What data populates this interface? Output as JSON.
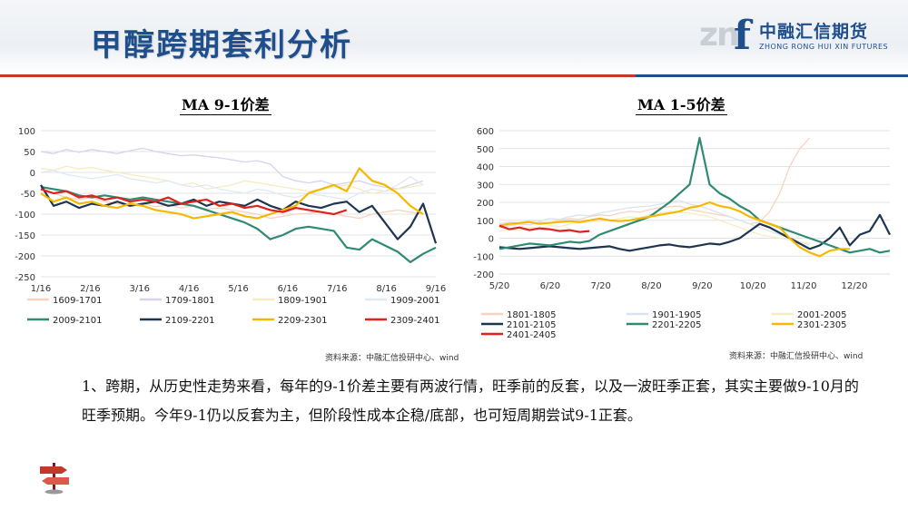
{
  "header": {
    "title": "甲醇跨期套利分析",
    "logo_mark": "zn",
    "logo_letter": "f",
    "logo_cn": "中融汇信期货",
    "logo_en": "ZHONG RONG HUI XIN FUTURES"
  },
  "colors": {
    "title": "#1f4e8c",
    "accent_red": "#c0392b",
    "accent_blue": "#1f4e8c"
  },
  "body": {
    "paragraph": "1、跨期，从历史性走势来看，每年的9-1价差主要有两波行情，旺季前的反套，以及一波旺季正套，其实主要做9-10月的旺季预期。今年9-1仍以反套为主，但阶段性成本企稳/底部，也可短周期尝试9-1正套。"
  },
  "chart_data": [
    {
      "type": "line",
      "title": "MA 9-1价差",
      "source": "资料来源：中融汇信投研中心、wind",
      "x_ticks": [
        "1/16",
        "2/16",
        "3/16",
        "4/16",
        "5/16",
        "6/16",
        "7/16",
        "8/16",
        "9/16"
      ],
      "ylim": [
        -250,
        100
      ],
      "y_ticks": [
        100,
        50,
        0,
        -50,
        -100,
        -150,
        -200,
        -250
      ],
      "legend_position": "bottom",
      "series": [
        {
          "name": "1609-1701",
          "color": "#f9d3bf",
          "width": 1.3,
          "y": [
            -40,
            -50,
            -60,
            -65,
            -60,
            -70,
            -75,
            -80,
            -75,
            -82,
            -78,
            -85,
            -80,
            -88,
            -85,
            -90,
            -95,
            -100,
            -110,
            -105,
            -100,
            -98,
            -95,
            -100,
            -105,
            -110,
            -100,
            -95,
            -90,
            -95,
            -100
          ]
        },
        {
          "name": "1709-1801",
          "color": "#d9d2ea",
          "width": 1.3,
          "y": [
            50,
            45,
            55,
            48,
            55,
            50,
            45,
            52,
            58,
            50,
            45,
            40,
            42,
            38,
            35,
            30,
            25,
            28,
            20,
            -10,
            -20,
            -25,
            -20,
            -30,
            -25,
            -20,
            -30,
            -35,
            -40,
            -30,
            -20
          ]
        },
        {
          "name": "1809-1901",
          "color": "#f5ecc0",
          "width": 1.3,
          "y": [
            10,
            5,
            15,
            8,
            12,
            5,
            0,
            -5,
            -10,
            -15,
            -20,
            -30,
            -25,
            -40,
            -35,
            -30,
            -20,
            -25,
            -30,
            -35,
            -40,
            -45,
            -40,
            -35,
            -30,
            -40,
            -50,
            -45,
            -40,
            -35,
            -30
          ]
        },
        {
          "name": "1909-2001",
          "color": "#dfe9f4",
          "width": 1.3,
          "y": [
            0,
            5,
            -5,
            -10,
            -15,
            -10,
            -5,
            -15,
            -20,
            -25,
            -20,
            -30,
            -35,
            -30,
            -40,
            -45,
            -50,
            -40,
            -45,
            -55,
            -60,
            -50,
            -55,
            -60,
            -65,
            -50,
            -40,
            -45,
            -30,
            -10,
            -30
          ]
        },
        {
          "name": "2009-2101",
          "color": "#2f8a74",
          "width": 2.2,
          "y": [
            -35,
            -40,
            -45,
            -55,
            -60,
            -55,
            -60,
            -65,
            -60,
            -65,
            -70,
            -75,
            -80,
            -90,
            -100,
            -110,
            -120,
            -135,
            -160,
            -150,
            -135,
            -130,
            -135,
            -140,
            -180,
            -185,
            -160,
            -175,
            -190,
            -215,
            -195,
            -180
          ]
        },
        {
          "name": "2109-2201",
          "color": "#1e3550",
          "width": 2.2,
          "y": [
            -30,
            -80,
            -70,
            -85,
            -75,
            -80,
            -70,
            -80,
            -75,
            -70,
            -80,
            -75,
            -65,
            -80,
            -70,
            -75,
            -80,
            -65,
            -80,
            -90,
            -70,
            -80,
            -85,
            -75,
            -70,
            -95,
            -80,
            -120,
            -160,
            -130,
            -75,
            -170
          ]
        },
        {
          "name": "2209-2301",
          "color": "#f5b800",
          "width": 2.2,
          "y": [
            -50,
            -70,
            -60,
            -75,
            -70,
            -80,
            -85,
            -75,
            -80,
            -90,
            -95,
            -100,
            -110,
            -105,
            -100,
            -95,
            -105,
            -110,
            -100,
            -90,
            -80,
            -50,
            -40,
            -30,
            -45,
            10,
            -20,
            -30,
            -50,
            -80,
            -100
          ]
        },
        {
          "name": "2309-2401",
          "color": "#e0211c",
          "width": 2.2,
          "y": [
            -40,
            -50,
            -45,
            -60,
            -55,
            -65,
            -60,
            -70,
            -65,
            -70,
            -60,
            -75,
            -70,
            -65,
            -80,
            -75,
            -85,
            -80,
            -90,
            -95,
            -85,
            -90,
            -95,
            -100,
            -90
          ]
        }
      ]
    },
    {
      "type": "line",
      "title": "MA 1-5价差",
      "source": "资料来源：中融汇信投研中心、wind",
      "x_ticks": [
        "5/20",
        "6/20",
        "7/20",
        "8/20",
        "9/20",
        "10/20",
        "11/20",
        "12/20"
      ],
      "ylim": [
        -200,
        600
      ],
      "y_ticks": [
        600,
        500,
        400,
        300,
        200,
        100,
        0,
        -100,
        -200
      ],
      "legend_position": "bottom",
      "series": [
        {
          "name": "1801-1805",
          "color": "#f9d3bf",
          "width": 1.3,
          "y": [
            60,
            70,
            80,
            75,
            90,
            85,
            100,
            110,
            105,
            120,
            130,
            125,
            140,
            150,
            145,
            160,
            170,
            175,
            180,
            160,
            150,
            140,
            130,
            120,
            100,
            80,
            90,
            150,
            250,
            400,
            500,
            560
          ]
        },
        {
          "name": "1901-1905",
          "color": "#d9e4f2",
          "width": 1.3,
          "y": [
            80,
            90,
            85,
            100,
            95,
            110,
            105,
            120,
            130,
            125,
            140,
            150,
            160,
            170,
            175,
            180,
            190,
            200,
            210,
            190,
            180,
            160,
            140,
            120,
            100,
            80,
            60,
            40,
            20,
            0,
            -20,
            -40
          ]
        },
        {
          "name": "2001-2005",
          "color": "#f5ecc0",
          "width": 1.3,
          "y": [
            40,
            50,
            45,
            60,
            55,
            70,
            65,
            80,
            85,
            90,
            95,
            100,
            110,
            120,
            115,
            130,
            140,
            150,
            145,
            140,
            130,
            120,
            100,
            80,
            60,
            40,
            20,
            10,
            0,
            -10,
            -20,
            -30
          ]
        },
        {
          "name": "2101-2105",
          "color": "#1e3550",
          "width": 2.2,
          "y": [
            -50,
            -55,
            -60,
            -55,
            -50,
            -45,
            -50,
            -55,
            -60,
            -55,
            -50,
            -45,
            -60,
            -70,
            -60,
            -50,
            -40,
            -35,
            -45,
            -50,
            -40,
            -30,
            -35,
            -20,
            0,
            40,
            80,
            60,
            30,
            0,
            -30,
            -60,
            -40,
            0,
            60,
            -40,
            20,
            40,
            130,
            20
          ]
        },
        {
          "name": "2201-2205",
          "color": "#2f8a74",
          "width": 2.2,
          "y": [
            -60,
            -50,
            -40,
            -30,
            -35,
            -40,
            -30,
            -20,
            -25,
            -15,
            20,
            40,
            60,
            80,
            100,
            120,
            160,
            200,
            250,
            300,
            560,
            300,
            250,
            220,
            180,
            150,
            100,
            80,
            60,
            40,
            20,
            0,
            -20,
            -40,
            -60,
            -80,
            -70,
            -60,
            -80,
            -70
          ]
        },
        {
          "name": "2301-2305",
          "color": "#f5b800",
          "width": 2.2,
          "y": [
            70,
            80,
            85,
            90,
            80,
            85,
            90,
            95,
            90,
            100,
            110,
            100,
            95,
            100,
            110,
            120,
            130,
            140,
            150,
            170,
            180,
            200,
            180,
            170,
            150,
            120,
            100,
            80,
            60,
            0,
            -50,
            -80,
            -100,
            -70,
            -60,
            -60
          ]
        },
        {
          "name": "2401-2405",
          "color": "#e0211c",
          "width": 2.2,
          "y": [
            70,
            50,
            60,
            45,
            55,
            50,
            40,
            45,
            35,
            40
          ]
        }
      ]
    }
  ]
}
